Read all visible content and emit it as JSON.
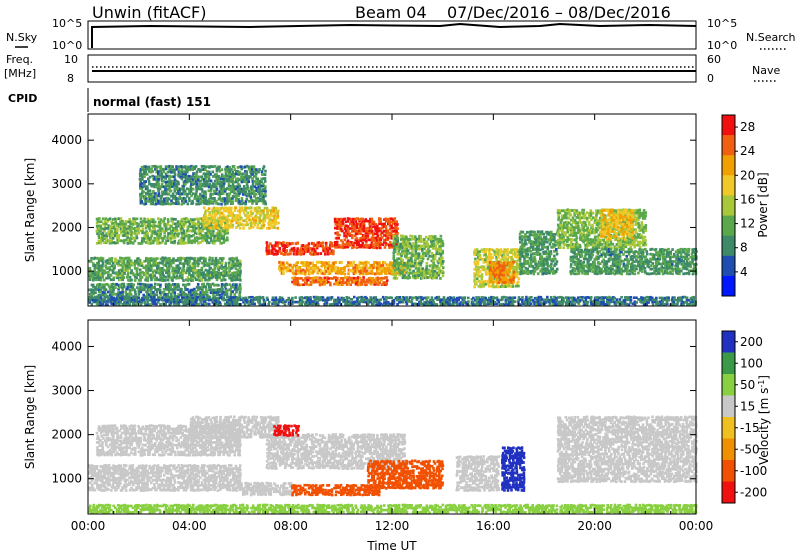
{
  "header": {
    "title": "Unwin (fitACF)",
    "beam": "Beam 04",
    "date_range": "07/Dec/2016 – 08/Dec/2016"
  },
  "top_panels": {
    "nsky_label": "N.Sky",
    "nsearch_label": "N.Search",
    "noise_tick_hi": "10^5",
    "noise_tick_lo": "10^0",
    "freq_label": "Freq.",
    "freq_unit": "[MHz]",
    "freq_ticks": [
      "10",
      "8"
    ],
    "nave_label": "Nave",
    "nave_ticks": [
      "60",
      "0"
    ],
    "cpid_label": "CPID",
    "cpid_text": "normal (fast) 151"
  },
  "colors": {
    "power_scale": [
      "#0018ff",
      "#1e4fb0",
      "#3e8a68",
      "#5aa84b",
      "#a8c83a",
      "#f0c828",
      "#f0a000",
      "#f06010",
      "#f01010"
    ],
    "velocity_scale": [
      "#2030c0",
      "#3a9a48",
      "#88d040",
      "#c8c8c8",
      "#f0c020",
      "#f09000",
      "#f05000",
      "#f01010"
    ]
  },
  "chart_data": [
    {
      "type": "heatmap",
      "panel": "power",
      "ylabel": "Slant Range [km]",
      "xlabel": "",
      "x_ticks": [
        "00:00",
        "04:00",
        "08:00",
        "12:00",
        "16:00",
        "20:00",
        "00:00"
      ],
      "y_ticks": [
        1000,
        2000,
        3000,
        4000
      ],
      "ylim": [
        200,
        4600
      ],
      "xlim_hours": [
        0,
        24
      ],
      "colorbar": {
        "label": "Power [dB]",
        "ticks": [
          4,
          8,
          12,
          16,
          20,
          24,
          28
        ],
        "range": [
          0,
          30
        ]
      },
      "regions": [
        {
          "t0": 0.0,
          "t1": 6.0,
          "r0": 300,
          "r1": 700,
          "level": 8
        },
        {
          "t0": 0.0,
          "t1": 6.0,
          "r0": 750,
          "r1": 1300,
          "level": 10
        },
        {
          "t0": 0.3,
          "t1": 5.5,
          "r0": 1600,
          "r1": 2200,
          "level": 12
        },
        {
          "t0": 4.5,
          "t1": 7.5,
          "r0": 1950,
          "r1": 2450,
          "level": 18
        },
        {
          "t0": 7.0,
          "t1": 9.7,
          "r0": 1350,
          "r1": 1650,
          "level": 28
        },
        {
          "t0": 9.7,
          "t1": 12.2,
          "r0": 1500,
          "r1": 2200,
          "level": 28
        },
        {
          "t0": 7.5,
          "t1": 12.5,
          "r0": 900,
          "r1": 1200,
          "level": 22
        },
        {
          "t0": 8.0,
          "t1": 11.8,
          "r0": 650,
          "r1": 850,
          "level": 26
        },
        {
          "t0": 12.0,
          "t1": 14.0,
          "r0": 800,
          "r1": 1800,
          "level": 12
        },
        {
          "t0": 15.2,
          "t1": 17.0,
          "r0": 600,
          "r1": 1500,
          "level": 16
        },
        {
          "t0": 15.8,
          "t1": 16.8,
          "r0": 700,
          "r1": 1200,
          "level": 24
        },
        {
          "t0": 17.0,
          "t1": 18.5,
          "r0": 900,
          "r1": 1900,
          "level": 9
        },
        {
          "t0": 18.5,
          "t1": 22.0,
          "r0": 1500,
          "r1": 2400,
          "level": 13
        },
        {
          "t0": 20.2,
          "t1": 21.5,
          "r0": 1700,
          "r1": 2400,
          "level": 20
        },
        {
          "t0": 19.0,
          "t1": 24.0,
          "r0": 900,
          "r1": 1500,
          "level": 9
        },
        {
          "t0": 0.0,
          "t1": 24.0,
          "r0": 200,
          "r1": 400,
          "level": 6
        },
        {
          "t0": 2.0,
          "t1": 7.0,
          "r0": 2500,
          "r1": 3400,
          "level": 8
        }
      ]
    },
    {
      "type": "heatmap",
      "panel": "velocity",
      "ylabel": "Slant Range [km]",
      "xlabel": "Time UT",
      "x_ticks": [
        "00:00",
        "04:00",
        "08:00",
        "12:00",
        "16:00",
        "20:00",
        "00:00"
      ],
      "y_ticks": [
        1000,
        2000,
        3000,
        4000
      ],
      "ylim": [
        200,
        4600
      ],
      "xlim_hours": [
        0,
        24
      ],
      "colorbar": {
        "label": "Velocity [m s^-1]",
        "ticks": [
          "200",
          "100",
          "50",
          "15",
          "-15",
          "-50",
          "-100",
          "-200"
        ]
      },
      "regions": [
        {
          "t0": 0.0,
          "t1": 6.0,
          "r0": 700,
          "r1": 1300,
          "level": 0
        },
        {
          "t0": 0.3,
          "t1": 6.0,
          "r0": 1500,
          "r1": 2200,
          "level": 0
        },
        {
          "t0": 4.0,
          "t1": 7.5,
          "r0": 1900,
          "r1": 2400,
          "level": 0
        },
        {
          "t0": 7.0,
          "t1": 12.5,
          "r0": 1200,
          "r1": 2000,
          "level": 0
        },
        {
          "t0": 6.0,
          "t1": 8.0,
          "r0": 600,
          "r1": 900,
          "level": 0
        },
        {
          "t0": 8.0,
          "t1": 11.5,
          "r0": 600,
          "r1": 850,
          "level": -150
        },
        {
          "t0": 11.0,
          "t1": 14.0,
          "r0": 750,
          "r1": 1400,
          "level": -110
        },
        {
          "t0": 7.3,
          "t1": 8.3,
          "r0": 1950,
          "r1": 2200,
          "level": -200
        },
        {
          "t0": 14.5,
          "t1": 16.2,
          "r0": 700,
          "r1": 1500,
          "level": 0
        },
        {
          "t0": 16.3,
          "t1": 17.2,
          "r0": 700,
          "r1": 1700,
          "level": 200
        },
        {
          "t0": 18.5,
          "t1": 24.0,
          "r0": 900,
          "r1": 2400,
          "level": 0
        },
        {
          "t0": 0.0,
          "t1": 24.0,
          "r0": 200,
          "r1": 400,
          "level": 40
        }
      ]
    }
  ]
}
